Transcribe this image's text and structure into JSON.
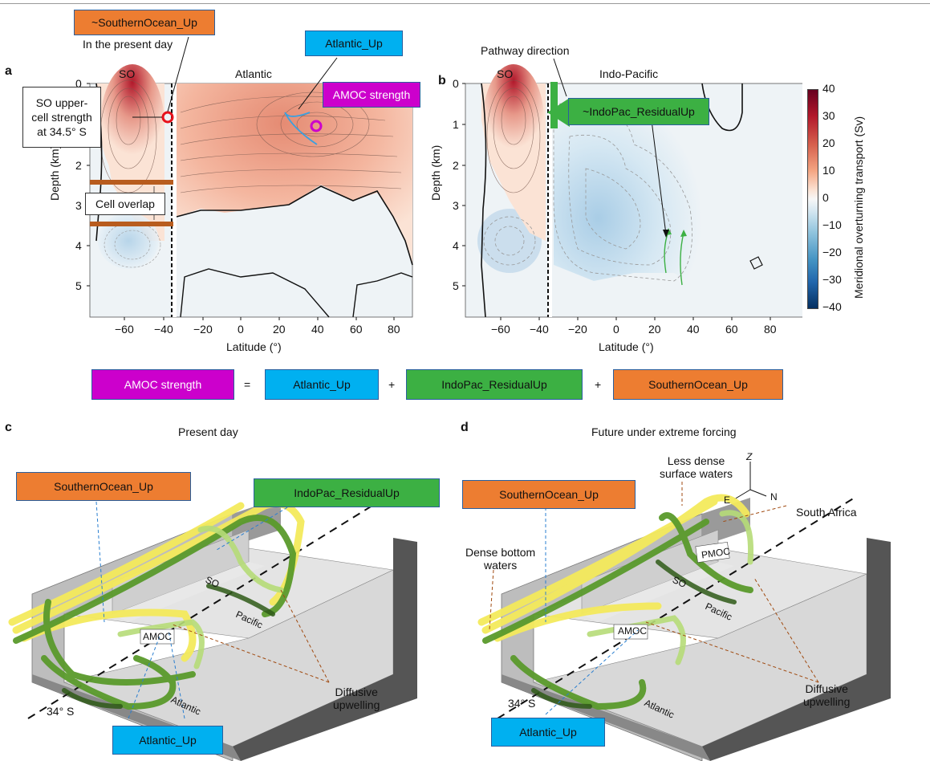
{
  "panel_a": {
    "letter": "a",
    "so_label": "SO",
    "atlantic_label": "Atlantic",
    "ylabel": "Depth (km)",
    "xlabel": "Latitude (°)",
    "xticks": [
      "−60",
      "−40",
      "−20",
      "0",
      "20",
      "40",
      "60",
      "80"
    ],
    "yticks": [
      "0",
      "1",
      "2",
      "3",
      "4",
      "5"
    ],
    "so_upper_cell_note": [
      "SO upper-",
      "cell strength",
      "at 34.5° S"
    ],
    "cell_overlap": "Cell overlap",
    "southern_up_box": "~SouthernOcean_Up",
    "present_day_note": "In the present day",
    "atlantic_up_box": "Atlantic_Up",
    "amoc_box": "AMOC strength"
  },
  "panel_b": {
    "letter": "b",
    "so_label": "SO",
    "indopac_label": "Indo-Pacific",
    "ylabel": "Depth (km)",
    "xlabel": "Latitude (°)",
    "xticks": [
      "−60",
      "−40",
      "−20",
      "0",
      "20",
      "40",
      "60",
      "80"
    ],
    "yticks": [
      "0",
      "1",
      "2",
      "3",
      "4",
      "5"
    ],
    "pathway": "Pathway direction",
    "indopac_box": "~IndoPac_ResidualUp"
  },
  "colorbar": {
    "label": "Meridional overturning transport (Sv)",
    "ticks": [
      "40",
      "30",
      "20",
      "10",
      "0",
      "−10",
      "−20",
      "−30",
      "−40"
    ],
    "colors": [
      "#67001f",
      "#b2182b",
      "#d6604d",
      "#f4a582",
      "#fbe3d5",
      "#f7f7f7",
      "#d1e5f0",
      "#92c5de",
      "#4393c3",
      "#2166ac",
      "#053061"
    ]
  },
  "equation": {
    "amoc": "AMOC strength",
    "eq": "=",
    "atlantic": "Atlantic_Up",
    "plus1": "+",
    "indopac": "IndoPac_ResidualUp",
    "plus2": "+",
    "southern": "SouthernOcean_Up"
  },
  "panel_c": {
    "letter": "c",
    "title": "Present day",
    "southern_box": "SouthernOcean_Up",
    "indopac_box": "IndoPac_ResidualUp",
    "atlantic_box": "Atlantic_Up",
    "so": "SO",
    "pacific": "Pacific",
    "atlantic": "Atlantic",
    "amoc": "AMOC",
    "lat": "34° S",
    "diffusive": [
      "Diffusive",
      "upwelling"
    ]
  },
  "panel_d": {
    "letter": "d",
    "title": "Future under extreme forcing",
    "southern_box": "SouthernOcean_Up",
    "atlantic_box": "Atlantic_Up",
    "less_dense": [
      "Less dense",
      "surface waters"
    ],
    "dense_bottom": [
      "Dense bottom",
      "waters"
    ],
    "south_africa": "South Africa",
    "so": "SO",
    "pacific": "Pacific",
    "atlantic": "Atlantic",
    "amoc": "AMOC",
    "pmoc": "PMOC",
    "lat": "34° S",
    "diffusive": [
      "Diffusive",
      "upwelling"
    ],
    "axis_z": "Z",
    "axis_e": "E",
    "axis_n": "N"
  }
}
